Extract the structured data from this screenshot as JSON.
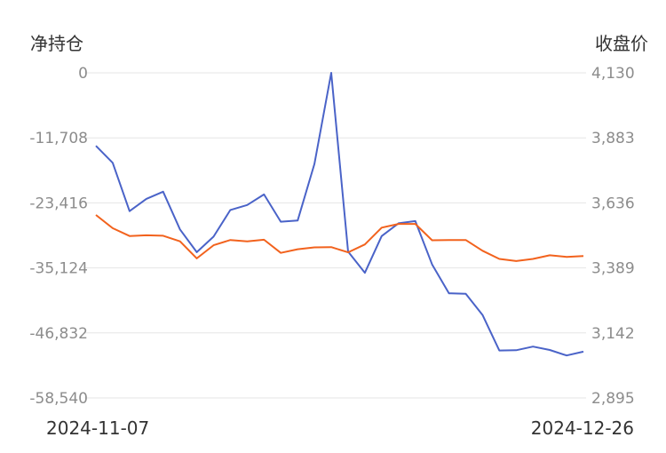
{
  "chart_data": {
    "type": "line",
    "y_left_label": "净持仓",
    "y_right_label": "收盘价",
    "x_start_label": "2024-11-07",
    "x_end_label": "2024-12-26",
    "y_left_ticks": [
      "0",
      "-11,708",
      "-23,416",
      "-35,124",
      "-46,832",
      "-58,540"
    ],
    "y_right_ticks": [
      "4,130",
      "3,883",
      "3,636",
      "3,389",
      "3,142",
      "2,895"
    ],
    "y_left_range": [
      -58540,
      0
    ],
    "y_right_range": [
      2895,
      4130
    ],
    "grid": true,
    "series": [
      {
        "axis": "left",
        "color": "#4a63c8",
        "values": [
          -13150,
          -16200,
          -24900,
          -22700,
          -21400,
          -28200,
          -32300,
          -29500,
          -24700,
          -23800,
          -21900,
          -26800,
          -26600,
          -16400,
          0,
          -32200,
          -36000,
          -29400,
          -27100,
          -26700,
          -34500,
          -39700,
          -39800,
          -43600,
          -50000,
          -49950,
          -49300,
          -49900,
          -50900,
          -50200
        ]
      },
      {
        "axis": "right",
        "color": "#f2621d",
        "values": [
          3590,
          3540,
          3510,
          3513,
          3511,
          3490,
          3425,
          3475,
          3495,
          3490,
          3496,
          3446,
          3460,
          3467,
          3468,
          3448,
          3478,
          3542,
          3556,
          3556,
          3494,
          3495,
          3495,
          3454,
          3423,
          3415,
          3423,
          3437,
          3431,
          3434
        ]
      }
    ]
  }
}
